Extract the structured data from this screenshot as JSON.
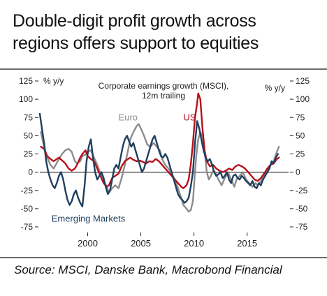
{
  "header": {
    "title_line1": "Double-digit profit growth across",
    "title_line2": "regions offers support to equities"
  },
  "footer": {
    "source": "Source: MSCI, Danske Bank, Macrobond Financial"
  },
  "colors": {
    "euro": "#8c8c8c",
    "us": "#b5121b",
    "em": "#1f3f5f",
    "axis": "#222222"
  },
  "chart_data": {
    "type": "line",
    "title": "Corporate earnings growth (MSCI),",
    "subtitle": "12m trailing",
    "ylabel_left": "% y/y",
    "ylabel_right": "% y/y",
    "ylim": [
      -75,
      125
    ],
    "yticks": [
      125,
      100,
      75,
      50,
      25,
      0,
      -25,
      -50,
      -75
    ],
    "ytick_labels": [
      "125",
      "100",
      "75",
      "50",
      "25",
      "0",
      "-25",
      "-50",
      "-75"
    ],
    "xlim": [
      1995.5,
      2018.9
    ],
    "xticks": [
      2000,
      2005,
      2010,
      2015
    ],
    "xtick_labels": [
      "2000",
      "2005",
      "2010",
      "2015"
    ],
    "series": [
      {
        "name": "Euro",
        "color_key": "euro",
        "points": [
          [
            1995.6,
            55
          ],
          [
            1995.9,
            35
          ],
          [
            1996.2,
            20
          ],
          [
            1996.5,
            10
          ],
          [
            1996.8,
            5
          ],
          [
            1997.0,
            10
          ],
          [
            1997.3,
            18
          ],
          [
            1997.6,
            25
          ],
          [
            1997.9,
            30
          ],
          [
            1998.2,
            32
          ],
          [
            1998.5,
            28
          ],
          [
            1998.8,
            15
          ],
          [
            1999.0,
            12
          ],
          [
            1999.3,
            15
          ],
          [
            1999.5,
            22
          ],
          [
            1999.8,
            24
          ],
          [
            2000.0,
            28
          ],
          [
            2000.3,
            30
          ],
          [
            2000.6,
            20
          ],
          [
            2000.9,
            10
          ],
          [
            2001.2,
            -2
          ],
          [
            2001.5,
            -12
          ],
          [
            2001.8,
            -20
          ],
          [
            2002.0,
            -28
          ],
          [
            2002.3,
            -22
          ],
          [
            2002.6,
            -18
          ],
          [
            2002.9,
            -22
          ],
          [
            2003.2,
            -8
          ],
          [
            2003.5,
            10
          ],
          [
            2003.8,
            30
          ],
          [
            2004.0,
            45
          ],
          [
            2004.3,
            55
          ],
          [
            2004.6,
            63
          ],
          [
            2004.8,
            66
          ],
          [
            2005.0,
            60
          ],
          [
            2005.3,
            50
          ],
          [
            2005.6,
            38
          ],
          [
            2005.9,
            35
          ],
          [
            2006.2,
            40
          ],
          [
            2006.5,
            35
          ],
          [
            2006.8,
            30
          ],
          [
            2007.0,
            18
          ],
          [
            2007.3,
            10
          ],
          [
            2007.6,
            5
          ],
          [
            2007.9,
            -2
          ],
          [
            2008.2,
            -10
          ],
          [
            2008.5,
            -22
          ],
          [
            2008.8,
            -35
          ],
          [
            2009.0,
            -45
          ],
          [
            2009.3,
            -50
          ],
          [
            2009.5,
            -54
          ],
          [
            2009.7,
            -52
          ],
          [
            2009.9,
            -40
          ],
          [
            2010.0,
            -20
          ],
          [
            2010.2,
            20
          ],
          [
            2010.4,
            45
          ],
          [
            2010.6,
            55
          ],
          [
            2010.8,
            50
          ],
          [
            2011.0,
            30
          ],
          [
            2011.2,
            0
          ],
          [
            2011.4,
            -10
          ],
          [
            2011.6,
            -5
          ],
          [
            2011.8,
            2
          ],
          [
            2012.0,
            0
          ],
          [
            2012.3,
            -10
          ],
          [
            2012.6,
            -18
          ],
          [
            2012.9,
            -8
          ],
          [
            2013.2,
            0
          ],
          [
            2013.5,
            -10
          ],
          [
            2013.8,
            -20
          ],
          [
            2014.0,
            -10
          ],
          [
            2014.3,
            -5
          ],
          [
            2014.6,
            0
          ],
          [
            2014.9,
            -10
          ],
          [
            2015.2,
            -15
          ],
          [
            2015.5,
            -20
          ],
          [
            2015.8,
            -15
          ],
          [
            2016.0,
            -18
          ],
          [
            2016.3,
            -12
          ],
          [
            2016.6,
            -5
          ],
          [
            2016.9,
            0
          ],
          [
            2017.2,
            10
          ],
          [
            2017.5,
            15
          ],
          [
            2017.8,
            28
          ],
          [
            2018.0,
            35
          ]
        ]
      },
      {
        "name": "US",
        "color_key": "us",
        "points": [
          [
            1995.6,
            35
          ],
          [
            1995.9,
            32
          ],
          [
            1996.2,
            22
          ],
          [
            1996.5,
            18
          ],
          [
            1996.8,
            15
          ],
          [
            1997.0,
            17
          ],
          [
            1997.3,
            20
          ],
          [
            1997.6,
            16
          ],
          [
            1997.9,
            12
          ],
          [
            1998.2,
            5
          ],
          [
            1998.5,
            2
          ],
          [
            1998.8,
            5
          ],
          [
            1999.0,
            10
          ],
          [
            1999.3,
            20
          ],
          [
            1999.5,
            25
          ],
          [
            1999.8,
            30
          ],
          [
            2000.0,
            22
          ],
          [
            2000.3,
            18
          ],
          [
            2000.6,
            15
          ],
          [
            2000.9,
            5
          ],
          [
            2001.2,
            -5
          ],
          [
            2001.5,
            -15
          ],
          [
            2001.8,
            -20
          ],
          [
            2002.0,
            -18
          ],
          [
            2002.3,
            -8
          ],
          [
            2002.6,
            -5
          ],
          [
            2002.9,
            -2
          ],
          [
            2003.2,
            8
          ],
          [
            2003.5,
            15
          ],
          [
            2003.8,
            18
          ],
          [
            2004.0,
            20
          ],
          [
            2004.3,
            17
          ],
          [
            2004.6,
            15
          ],
          [
            2004.9,
            16
          ],
          [
            2005.2,
            14
          ],
          [
            2005.5,
            12
          ],
          [
            2005.8,
            15
          ],
          [
            2006.1,
            14
          ],
          [
            2006.4,
            18
          ],
          [
            2006.7,
            15
          ],
          [
            2007.0,
            10
          ],
          [
            2007.3,
            5
          ],
          [
            2007.6,
            0
          ],
          [
            2007.9,
            -5
          ],
          [
            2008.2,
            -10
          ],
          [
            2008.5,
            -15
          ],
          [
            2008.8,
            -20
          ],
          [
            2009.0,
            -22
          ],
          [
            2009.3,
            -18
          ],
          [
            2009.5,
            -10
          ],
          [
            2009.7,
            10
          ],
          [
            2009.9,
            40
          ],
          [
            2010.1,
            75
          ],
          [
            2010.3,
            95
          ],
          [
            2010.4,
            108
          ],
          [
            2010.6,
            100
          ],
          [
            2010.8,
            60
          ],
          [
            2011.0,
            30
          ],
          [
            2011.2,
            15
          ],
          [
            2011.5,
            8
          ],
          [
            2011.8,
            10
          ],
          [
            2012.1,
            5
          ],
          [
            2012.4,
            2
          ],
          [
            2012.7,
            0
          ],
          [
            2013.0,
            2
          ],
          [
            2013.3,
            5
          ],
          [
            2013.6,
            3
          ],
          [
            2013.9,
            8
          ],
          [
            2014.2,
            10
          ],
          [
            2014.5,
            8
          ],
          [
            2014.8,
            5
          ],
          [
            2015.1,
            0
          ],
          [
            2015.4,
            -5
          ],
          [
            2015.7,
            -10
          ],
          [
            2016.0,
            -12
          ],
          [
            2016.3,
            -8
          ],
          [
            2016.6,
            -2
          ],
          [
            2016.9,
            5
          ],
          [
            2017.2,
            10
          ],
          [
            2017.5,
            12
          ],
          [
            2017.8,
            18
          ],
          [
            2018.0,
            20
          ]
        ]
      },
      {
        "name": "Emerging Markets",
        "color_key": "em",
        "points": [
          [
            1995.5,
            80
          ],
          [
            1995.7,
            60
          ],
          [
            1995.9,
            40
          ],
          [
            1996.1,
            15
          ],
          [
            1996.3,
            0
          ],
          [
            1996.5,
            -10
          ],
          [
            1996.7,
            -18
          ],
          [
            1996.9,
            -22
          ],
          [
            1997.1,
            -15
          ],
          [
            1997.3,
            -5
          ],
          [
            1997.5,
            0
          ],
          [
            1997.7,
            -10
          ],
          [
            1997.9,
            -25
          ],
          [
            1998.1,
            -38
          ],
          [
            1998.3,
            -45
          ],
          [
            1998.5,
            -40
          ],
          [
            1998.7,
            -30
          ],
          [
            1998.9,
            -25
          ],
          [
            1999.1,
            -35
          ],
          [
            1999.3,
            -42
          ],
          [
            1999.5,
            -47
          ],
          [
            1999.7,
            -20
          ],
          [
            1999.9,
            15
          ],
          [
            2000.1,
            35
          ],
          [
            2000.3,
            45
          ],
          [
            2000.5,
            20
          ],
          [
            2000.7,
            0
          ],
          [
            2000.9,
            -10
          ],
          [
            2001.1,
            -5
          ],
          [
            2001.3,
            0
          ],
          [
            2001.5,
            -8
          ],
          [
            2001.7,
            -20
          ],
          [
            2001.9,
            -30
          ],
          [
            2002.1,
            -25
          ],
          [
            2002.3,
            -10
          ],
          [
            2002.5,
            5
          ],
          [
            2002.7,
            10
          ],
          [
            2002.9,
            5
          ],
          [
            2003.1,
            20
          ],
          [
            2003.3,
            35
          ],
          [
            2003.5,
            45
          ],
          [
            2003.7,
            50
          ],
          [
            2003.9,
            42
          ],
          [
            2004.1,
            35
          ],
          [
            2004.3,
            40
          ],
          [
            2004.5,
            30
          ],
          [
            2004.7,
            20
          ],
          [
            2004.9,
            10
          ],
          [
            2005.1,
            0
          ],
          [
            2005.3,
            5
          ],
          [
            2005.5,
            15
          ],
          [
            2005.7,
            25
          ],
          [
            2005.9,
            35
          ],
          [
            2006.1,
            45
          ],
          [
            2006.3,
            50
          ],
          [
            2006.5,
            40
          ],
          [
            2006.7,
            30
          ],
          [
            2006.9,
            22
          ],
          [
            2007.1,
            20
          ],
          [
            2007.3,
            25
          ],
          [
            2007.5,
            20
          ],
          [
            2007.7,
            10
          ],
          [
            2007.9,
            0
          ],
          [
            2008.1,
            -10
          ],
          [
            2008.3,
            -20
          ],
          [
            2008.5,
            -30
          ],
          [
            2008.7,
            -35
          ],
          [
            2008.9,
            -38
          ],
          [
            2009.1,
            -42
          ],
          [
            2009.3,
            -40
          ],
          [
            2009.5,
            -35
          ],
          [
            2009.7,
            -20
          ],
          [
            2009.9,
            0
          ],
          [
            2010.1,
            40
          ],
          [
            2010.3,
            70
          ],
          [
            2010.5,
            60
          ],
          [
            2010.7,
            45
          ],
          [
            2010.9,
            30
          ],
          [
            2011.1,
            20
          ],
          [
            2011.3,
            15
          ],
          [
            2011.5,
            18
          ],
          [
            2011.7,
            10
          ],
          [
            2011.9,
            0
          ],
          [
            2012.1,
            -5
          ],
          [
            2012.3,
            -3
          ],
          [
            2012.5,
            0
          ],
          [
            2012.7,
            -8
          ],
          [
            2012.9,
            -5
          ],
          [
            2013.1,
            0
          ],
          [
            2013.3,
            -10
          ],
          [
            2013.5,
            -15
          ],
          [
            2013.7,
            -5
          ],
          [
            2013.9,
            -3
          ],
          [
            2014.1,
            -8
          ],
          [
            2014.3,
            -10
          ],
          [
            2014.5,
            -5
          ],
          [
            2014.7,
            -8
          ],
          [
            2014.9,
            -12
          ],
          [
            2015.1,
            -15
          ],
          [
            2015.3,
            -18
          ],
          [
            2015.5,
            -12
          ],
          [
            2015.7,
            -20
          ],
          [
            2015.9,
            -22
          ],
          [
            2016.1,
            -15
          ],
          [
            2016.3,
            -18
          ],
          [
            2016.5,
            -10
          ],
          [
            2016.7,
            -5
          ],
          [
            2016.9,
            0
          ],
          [
            2017.1,
            5
          ],
          [
            2017.3,
            15
          ],
          [
            2017.5,
            12
          ],
          [
            2017.7,
            20
          ],
          [
            2017.9,
            25
          ]
        ]
      }
    ],
    "annotations": {
      "euro": "Euro",
      "us": "US",
      "em": "Emerging Markets"
    },
    "grid": false
  }
}
